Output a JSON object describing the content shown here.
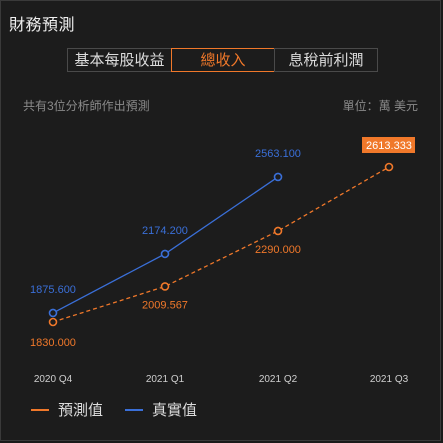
{
  "header": {
    "title": "財務預測"
  },
  "tabs": [
    {
      "label": "基本每股收益",
      "active": false
    },
    {
      "label": "總收入",
      "active": true
    },
    {
      "label": "息稅前利潤",
      "active": false
    }
  ],
  "info": {
    "analyst_note": "共有3位分析師作出預測",
    "unit": "單位：萬 美元"
  },
  "colors": {
    "forecast": "#f0782a",
    "actual": "#3a6fd8",
    "highlight_bg": "#f0782a"
  },
  "chart_data": {
    "type": "line",
    "categories": [
      "2020 Q4",
      "2021 Q1",
      "2021 Q2",
      "2021 Q3"
    ],
    "series": [
      {
        "name": "預測值",
        "style": "dashed",
        "values": [
          1830.0,
          2009.567,
          2290.0,
          2613.333
        ],
        "labels": [
          "1830.000",
          "2009.567",
          "2290.000",
          "2613.333"
        ]
      },
      {
        "name": "真實值",
        "style": "solid",
        "values": [
          1875.6,
          2174.2,
          2563.1,
          null
        ],
        "labels": [
          "1875.600",
          "2174.200",
          "2563.100",
          null
        ]
      }
    ],
    "highlighted_label": "2613.333",
    "grid": false
  },
  "legend": {
    "forecast_label": "預測值",
    "actual_label": "真實值"
  }
}
